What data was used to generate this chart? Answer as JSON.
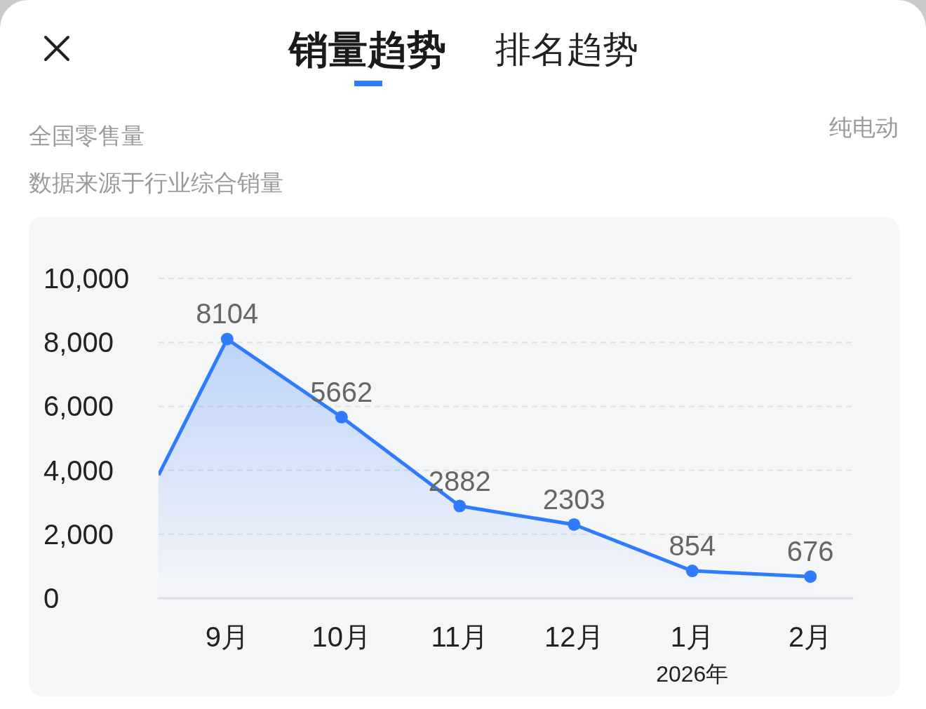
{
  "chart_data": {
    "type": "area",
    "title": "销量趋势",
    "subtitle": "全国零售量",
    "annotations": [
      "排名趋势",
      "纯电动",
      "数据来源于行业综合销量"
    ],
    "series": [
      {
        "color": "#2f7bff",
        "x": [
          "2025-08-14",
          "2025-09",
          "2025-10",
          "2025-11",
          "2025-12",
          "2026-01",
          "2026-02"
        ],
        "values": [
          3850,
          8104,
          5662,
          2882,
          2303,
          854,
          676
        ],
        "value_labels": [
          null,
          "8104",
          "5662",
          "2882",
          "2303",
          "854",
          "676"
        ]
      }
    ],
    "xlim": [
      "2025-08-14",
      "2026-02-12"
    ],
    "xticks": [
      {
        "value": "2025-09",
        "label": "9月"
      },
      {
        "value": "2025-10",
        "label": "10月"
      },
      {
        "value": "2025-11",
        "label": "11月"
      },
      {
        "value": "2025-12",
        "label": "12月"
      },
      {
        "value": "2026-01",
        "label": "1月\n2026年"
      },
      {
        "value": "2026-02",
        "label": "2月"
      }
    ],
    "ylim": [
      0,
      10000
    ],
    "yticks": [
      0,
      {
        "value": 2000,
        "label": "2,000"
      },
      {
        "value": 4000,
        "label": "4,000"
      },
      {
        "value": 6000,
        "label": "6,000"
      },
      {
        "value": 8000,
        "label": "8,000"
      },
      {
        "value": 10000,
        "label": "10,000"
      }
    ],
    "grid": "y",
    "marker": "circle",
    "line_style": "solid"
  }
}
